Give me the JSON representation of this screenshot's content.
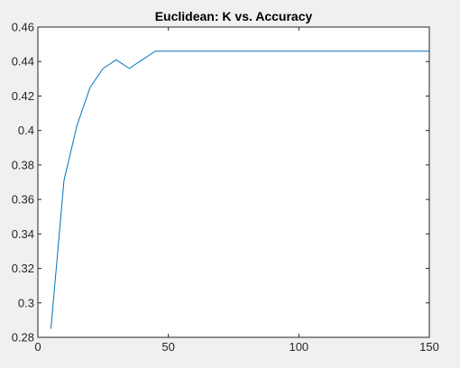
{
  "chart_data": {
    "type": "line",
    "title": "Euclidean: K vs. Accuracy",
    "xlabel": "",
    "ylabel": "",
    "xlim": [
      0,
      150
    ],
    "ylim": [
      0.28,
      0.46
    ],
    "xticks": [
      0,
      50,
      100,
      150
    ],
    "xtick_labels": [
      "0",
      "50",
      "100",
      "150"
    ],
    "yticks": [
      0.28,
      0.3,
      0.32,
      0.34,
      0.36,
      0.38,
      0.4,
      0.42,
      0.44,
      0.46
    ],
    "ytick_labels": [
      "0.28",
      "0.3",
      "0.32",
      "0.34",
      "0.36",
      "0.38",
      "0.4",
      "0.42",
      "0.44",
      "0.46"
    ],
    "grid": false,
    "legend": "none",
    "series": [
      {
        "color": "#0072bd",
        "x": [
          5,
          10,
          15,
          20,
          25,
          30,
          35,
          40,
          45,
          50,
          55,
          60,
          65,
          70,
          75,
          80,
          85,
          90,
          95,
          100,
          105,
          110,
          115,
          120,
          125,
          130,
          135,
          140,
          145,
          150
        ],
        "y": [
          0.285,
          0.371,
          0.403,
          0.425,
          0.436,
          0.441,
          0.436,
          0.441,
          0.446,
          0.446,
          0.446,
          0.446,
          0.446,
          0.446,
          0.446,
          0.446,
          0.446,
          0.446,
          0.446,
          0.446,
          0.446,
          0.446,
          0.446,
          0.446,
          0.446,
          0.446,
          0.446,
          0.446,
          0.446,
          0.446
        ]
      }
    ]
  }
}
